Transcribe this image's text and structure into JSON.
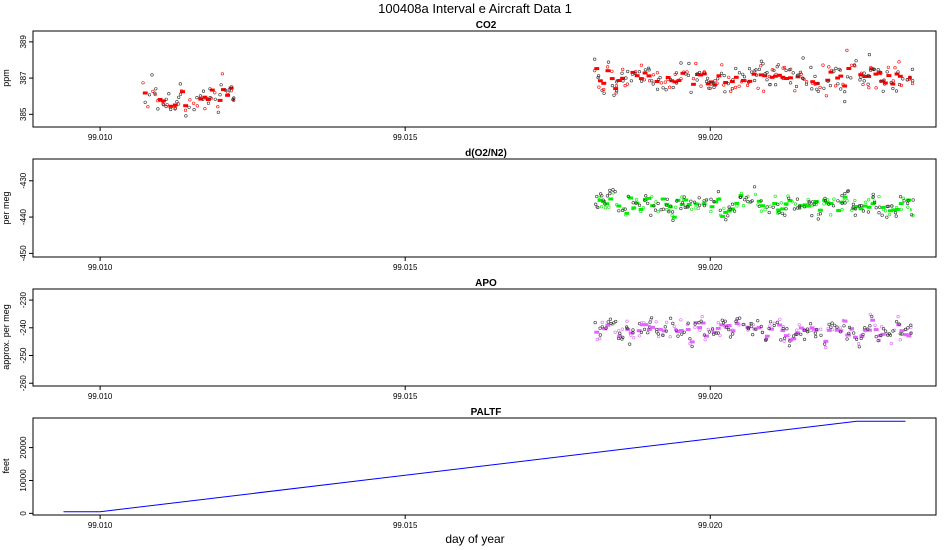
{
  "title": "100408a   Interval e Aircraft Data 1",
  "xlabel": "day of year",
  "chart_data": [
    {
      "type": "scatter",
      "title": "CO2",
      "ylabel": "ppm",
      "xlim": [
        99.0089,
        99.0237
      ],
      "ylim": [
        384.3,
        389.6
      ],
      "x_ticks": [
        99.01,
        99.015,
        99.02
      ],
      "x_tick_labels": [
        "99.010",
        "99.015",
        "99.020"
      ],
      "y_ticks": [
        385,
        387,
        389
      ],
      "y_tick_labels": [
        "385",
        "387",
        "389"
      ],
      "color": "#ff0000",
      "segments": [
        {
          "x0": 99.0107,
          "x1": 99.0122,
          "mean": 386.0,
          "spread": 0.6,
          "scatter": 1.1
        },
        {
          "x0": 99.0181,
          "x1": 99.0233,
          "mean": 387.0,
          "spread": 0.55,
          "scatter": 1.2
        }
      ]
    },
    {
      "type": "scatter",
      "title": "d(O2/N2)",
      "ylabel": "per meg",
      "xlim": [
        99.0089,
        99.0237
      ],
      "ylim": [
        -451,
        -424
      ],
      "x_ticks": [
        99.01,
        99.015,
        99.02
      ],
      "x_tick_labels": [
        "99.010",
        "99.015",
        "99.020"
      ],
      "y_ticks": [
        -430,
        -440,
        -450
      ],
      "y_tick_labels": [
        "-430",
        "-440",
        "-450"
      ],
      "color": "#00ee00",
      "segments": [
        {
          "x0": 99.0181,
          "x1": 99.0233,
          "mean": -437.0,
          "spread": 3.0,
          "scatter": 4.0
        }
      ]
    },
    {
      "type": "scatter",
      "title": "APO",
      "ylabel": "approx. per meg",
      "xlim": [
        99.0089,
        99.0237
      ],
      "ylim": [
        -261,
        -226
      ],
      "x_ticks": [
        99.01,
        99.015,
        99.02
      ],
      "x_tick_labels": [
        "99.010",
        "99.015",
        "99.020"
      ],
      "y_ticks": [
        -230,
        -240,
        -250,
        -260
      ],
      "y_tick_labels": [
        "-230",
        "-240",
        "-250",
        "-260"
      ],
      "color": "#e066ff",
      "segments": [
        {
          "x0": 99.0181,
          "x1": 99.0233,
          "mean": -241.0,
          "spread": 3.5,
          "scatter": 5.0
        }
      ]
    },
    {
      "type": "line",
      "title": "PALTF",
      "ylabel": "feet",
      "xlim": [
        99.0089,
        99.0237
      ],
      "ylim": [
        -500,
        29000
      ],
      "x_ticks": [
        99.01,
        99.015,
        99.02
      ],
      "x_tick_labels": [
        "99.010",
        "99.015",
        "99.020"
      ],
      "y_ticks": [
        0,
        10000,
        20000
      ],
      "y_tick_labels": [
        "0",
        "10000",
        "20000"
      ],
      "color": "#0000ff",
      "x": [
        99.0094,
        99.01,
        99.0224,
        99.0232
      ],
      "y": [
        500,
        500,
        28000,
        28000
      ]
    }
  ]
}
